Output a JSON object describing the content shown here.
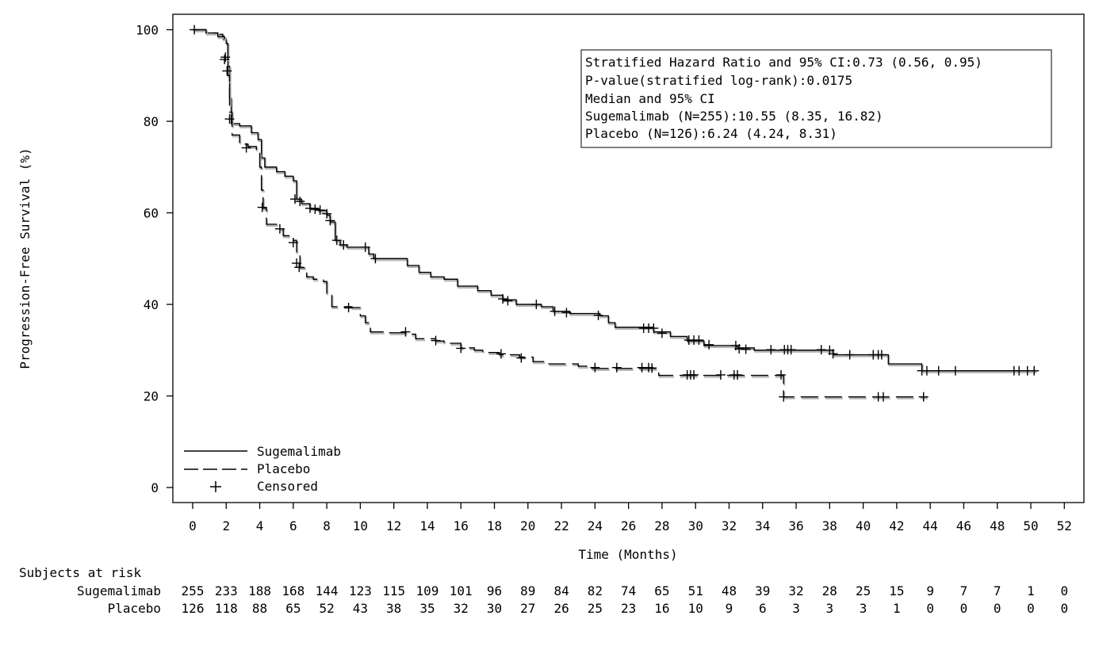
{
  "chart_data": {
    "type": "line",
    "xlabel": "Time (Months)",
    "ylabel": "Progression-Free Survival (%)",
    "xlim": [
      0,
      52
    ],
    "ylim": [
      0,
      100
    ],
    "x_ticks": [
      "0",
      "2",
      "4",
      "6",
      "8",
      "10",
      "12",
      "14",
      "16",
      "18",
      "20",
      "22",
      "24",
      "26",
      "28",
      "30",
      "32",
      "34",
      "36",
      "38",
      "40",
      "42",
      "44",
      "46",
      "48",
      "50",
      "52"
    ],
    "y_ticks": [
      "0",
      "20",
      "40",
      "60",
      "80",
      "100"
    ],
    "grid": false,
    "legend_position": "bottom-left",
    "legend": {
      "sugemalimab": "Sugemalimab",
      "placebo": "Placebo",
      "censored": "Censored"
    },
    "stats": [
      "Stratified Hazard Ratio and 95% CI:0.73 (0.56, 0.95)",
      "P-value(stratified log-rank):0.0175",
      "Median and 95% CI",
      "Sugemalimab (N=255):10.55 (8.35, 16.82)",
      "Placebo (N=126):6.24 (4.24, 8.31)"
    ],
    "series": [
      {
        "name": "Sugemalimab",
        "style": "solid",
        "points": [
          [
            0,
            100
          ],
          [
            0.6,
            100
          ],
          [
            0.8,
            99.3
          ],
          [
            1.5,
            99
          ],
          [
            1.8,
            98
          ],
          [
            2.0,
            97
          ],
          [
            2.1,
            92
          ],
          [
            2.2,
            85
          ],
          [
            2.3,
            79.5
          ],
          [
            2.8,
            79
          ],
          [
            3.5,
            77.5
          ],
          [
            3.9,
            76
          ],
          [
            4.1,
            72
          ],
          [
            4.3,
            70
          ],
          [
            5.0,
            69
          ],
          [
            5.5,
            68
          ],
          [
            6.0,
            67
          ],
          [
            6.2,
            63
          ],
          [
            6.5,
            62
          ],
          [
            7.0,
            61
          ],
          [
            7.5,
            60.5
          ],
          [
            8.0,
            59.5
          ],
          [
            8.2,
            58
          ],
          [
            8.5,
            54
          ],
          [
            8.8,
            53
          ],
          [
            9.2,
            52.5
          ],
          [
            10.0,
            52.5
          ],
          [
            10.5,
            51
          ],
          [
            10.8,
            50
          ],
          [
            12.3,
            50
          ],
          [
            12.8,
            48.5
          ],
          [
            13.5,
            47
          ],
          [
            14.2,
            46
          ],
          [
            15.0,
            45.5
          ],
          [
            15.8,
            44
          ],
          [
            17.0,
            43
          ],
          [
            17.8,
            42
          ],
          [
            18.5,
            41
          ],
          [
            19.3,
            40
          ],
          [
            20.8,
            39.5
          ],
          [
            21.5,
            38.5
          ],
          [
            22.5,
            38
          ],
          [
            24.3,
            37.5
          ],
          [
            24.8,
            36
          ],
          [
            25.2,
            35
          ],
          [
            27.5,
            34
          ],
          [
            28.5,
            33
          ],
          [
            29.5,
            32
          ],
          [
            30.5,
            31
          ],
          [
            31.5,
            31
          ],
          [
            32.5,
            30.5
          ],
          [
            33.5,
            30
          ],
          [
            38.0,
            30
          ],
          [
            38.2,
            29
          ],
          [
            40.5,
            29
          ],
          [
            41.5,
            27
          ],
          [
            43.3,
            27
          ],
          [
            43.5,
            25.5
          ],
          [
            50.3,
            25.5
          ]
        ],
        "censored": [
          [
            0.1,
            100
          ],
          [
            1.9,
            93.5
          ],
          [
            2.05,
            91
          ],
          [
            2.2,
            80.5
          ],
          [
            3.2,
            74.2
          ],
          [
            6.1,
            63
          ],
          [
            6.4,
            62.5
          ],
          [
            7.0,
            61
          ],
          [
            7.3,
            60.8
          ],
          [
            7.6,
            60.6
          ],
          [
            8.0,
            59.8
          ],
          [
            8.2,
            58.3
          ],
          [
            8.6,
            54
          ],
          [
            9.0,
            53
          ],
          [
            10.3,
            52.5
          ],
          [
            10.9,
            50
          ],
          [
            18.5,
            41.2
          ],
          [
            18.8,
            40.8
          ],
          [
            20.5,
            40
          ],
          [
            21.6,
            38.5
          ],
          [
            22.3,
            38.2
          ],
          [
            24.2,
            37.6
          ],
          [
            26.9,
            34.8
          ],
          [
            27.2,
            34.8
          ],
          [
            27.5,
            34.8
          ],
          [
            28.0,
            33.7
          ],
          [
            29.6,
            32.2
          ],
          [
            29.9,
            32.2
          ],
          [
            30.2,
            32.2
          ],
          [
            30.8,
            31.2
          ],
          [
            32.4,
            31
          ],
          [
            32.6,
            30.3
          ],
          [
            33.0,
            30.2
          ],
          [
            34.5,
            30.1
          ],
          [
            35.3,
            30.1
          ],
          [
            35.5,
            30.1
          ],
          [
            35.7,
            30.1
          ],
          [
            37.5,
            30.1
          ],
          [
            38.0,
            30
          ],
          [
            38.2,
            29.2
          ],
          [
            39.2,
            29
          ],
          [
            40.6,
            29
          ],
          [
            40.9,
            29
          ],
          [
            41.1,
            29
          ],
          [
            43.5,
            25.5
          ],
          [
            43.8,
            25.5
          ],
          [
            44.5,
            25.5
          ],
          [
            45.5,
            25.5
          ],
          [
            49.0,
            25.5
          ],
          [
            49.3,
            25.5
          ],
          [
            49.8,
            25.5
          ],
          [
            50.2,
            25.5
          ]
        ]
      },
      {
        "name": "Placebo",
        "style": "dashed",
        "points": [
          [
            0,
            100
          ],
          [
            0.8,
            99.3
          ],
          [
            1.5,
            98.5
          ],
          [
            1.9,
            97
          ],
          [
            2.1,
            90
          ],
          [
            2.2,
            82
          ],
          [
            2.35,
            77
          ],
          [
            2.8,
            75
          ],
          [
            3.3,
            74.5
          ],
          [
            3.8,
            73
          ],
          [
            4.0,
            70
          ],
          [
            4.1,
            65
          ],
          [
            4.2,
            61
          ],
          [
            4.4,
            57.5
          ],
          [
            5.0,
            56.5
          ],
          [
            5.4,
            55
          ],
          [
            6.0,
            54
          ],
          [
            6.2,
            51
          ],
          [
            6.4,
            48
          ],
          [
            6.8,
            46
          ],
          [
            7.2,
            45.5
          ],
          [
            7.8,
            45
          ],
          [
            8.0,
            42
          ],
          [
            8.3,
            39.5
          ],
          [
            9.5,
            39.3
          ],
          [
            10.0,
            37.5
          ],
          [
            10.3,
            36
          ],
          [
            10.6,
            34
          ],
          [
            11.5,
            33.8
          ],
          [
            12.8,
            33.5
          ],
          [
            13.3,
            32.5
          ],
          [
            14.5,
            32
          ],
          [
            15.0,
            31.5
          ],
          [
            16.0,
            30.5
          ],
          [
            16.8,
            30
          ],
          [
            17.3,
            29.5
          ],
          [
            18.3,
            29
          ],
          [
            19.5,
            28.5
          ],
          [
            20.3,
            27.5
          ],
          [
            21.0,
            27
          ],
          [
            23.0,
            26.5
          ],
          [
            23.5,
            26
          ],
          [
            27.5,
            26
          ],
          [
            27.8,
            24.5
          ],
          [
            35.2,
            24.5
          ],
          [
            35.25,
            19.8
          ],
          [
            43.8,
            19.8
          ]
        ],
        "censored": [
          [
            1.95,
            94
          ],
          [
            4.15,
            61.2
          ],
          [
            5.2,
            56.5
          ],
          [
            6.0,
            53.5
          ],
          [
            6.2,
            49
          ],
          [
            6.35,
            48.1
          ],
          [
            9.3,
            39.3
          ],
          [
            12.7,
            34
          ],
          [
            14.5,
            32.1
          ],
          [
            16.0,
            30.4
          ],
          [
            18.4,
            29.2
          ],
          [
            19.6,
            28.3
          ],
          [
            24.0,
            26.2
          ],
          [
            25.3,
            26.2
          ],
          [
            26.8,
            26.2
          ],
          [
            27.2,
            26.2
          ],
          [
            27.4,
            26.1
          ],
          [
            29.5,
            24.6
          ],
          [
            29.7,
            24.6
          ],
          [
            29.9,
            24.6
          ],
          [
            31.5,
            24.6
          ],
          [
            32.3,
            24.6
          ],
          [
            32.5,
            24.6
          ],
          [
            35.1,
            24.6
          ],
          [
            35.25,
            19.8
          ],
          [
            40.9,
            19.8
          ],
          [
            41.2,
            19.8
          ],
          [
            43.6,
            19.8
          ]
        ]
      }
    ],
    "risk_table": {
      "title": "Subjects at risk",
      "times": [
        0,
        2,
        4,
        6,
        8,
        10,
        12,
        14,
        16,
        18,
        20,
        22,
        24,
        26,
        28,
        30,
        32,
        34,
        36,
        38,
        40,
        42,
        44,
        46,
        48,
        50,
        52
      ],
      "rows": [
        {
          "name": "Sugemalimab",
          "values": [
            "255",
            "233",
            "188",
            "168",
            "144",
            "123",
            "115",
            "109",
            "101",
            "96",
            "89",
            "84",
            "82",
            "74",
            "65",
            "51",
            "48",
            "39",
            "32",
            "28",
            "25",
            "15",
            "9",
            "7",
            "7",
            "1",
            "0"
          ]
        },
        {
          "name": "Placebo",
          "values": [
            "126",
            "118",
            "88",
            "65",
            "52",
            "43",
            "38",
            "35",
            "32",
            "30",
            "27",
            "26",
            "25",
            "23",
            "16",
            "10",
            "9",
            "6",
            "3",
            "3",
            "3",
            "1",
            "0",
            "0",
            "0",
            "0",
            "0"
          ]
        }
      ]
    }
  }
}
